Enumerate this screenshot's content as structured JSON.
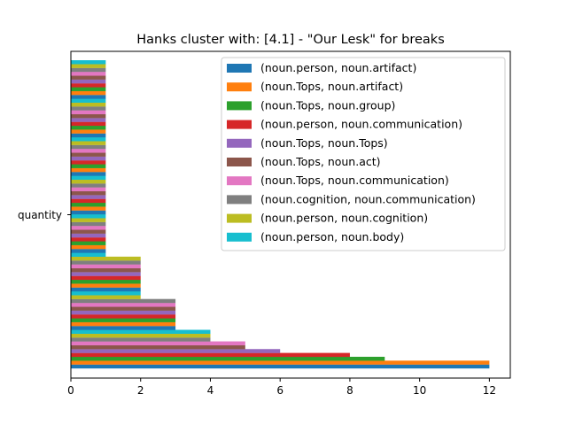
{
  "chart_data": {
    "type": "bar",
    "orientation": "horizontal",
    "title": "Hanks cluster with: [4.1] - \"Our Lesk\" for breaks",
    "xlabel": "",
    "ylabel": "",
    "category_label": "quantity",
    "xlim": [
      0,
      12.6
    ],
    "xticks": [
      "0",
      "2",
      "4",
      "6",
      "8",
      "10",
      "12"
    ],
    "legend_position": "top-right",
    "legend": [
      {
        "name": "(noun.person, noun.artifact)",
        "color": "#1f77b4"
      },
      {
        "name": "(noun.Tops, noun.artifact)",
        "color": "#ff7f0e"
      },
      {
        "name": "(noun.Tops, noun.group)",
        "color": "#2ca02c"
      },
      {
        "name": "(noun.person, noun.communication)",
        "color": "#d62728"
      },
      {
        "name": "(noun.Tops, noun.Tops)",
        "color": "#9467bd"
      },
      {
        "name": "(noun.Tops, noun.act)",
        "color": "#8c564b"
      },
      {
        "name": "(noun.Tops, noun.communication)",
        "color": "#e377c2"
      },
      {
        "name": "(noun.cognition, noun.communication)",
        "color": "#7f7f7f"
      },
      {
        "name": "(noun.person, noun.cognition)",
        "color": "#bcbd22"
      },
      {
        "name": "(noun.person, noun.body)",
        "color": "#17becf"
      }
    ],
    "colors": [
      "#1f77b4",
      "#ff7f0e",
      "#2ca02c",
      "#d62728",
      "#9467bd",
      "#8c564b",
      "#e377c2",
      "#7f7f7f",
      "#bcbd22",
      "#17becf"
    ],
    "values": [
      12,
      12,
      9,
      8,
      6,
      5,
      5,
      4,
      4,
      4,
      3,
      3,
      3,
      3,
      3,
      3,
      3,
      3,
      2,
      2,
      2,
      2,
      2,
      2,
      2,
      2,
      2,
      2,
      2,
      1,
      1,
      1,
      1,
      1,
      1,
      1,
      1,
      1,
      1,
      1,
      1,
      1,
      1,
      1,
      1,
      1,
      1,
      1,
      1,
      1,
      1,
      1,
      1,
      1,
      1,
      1,
      1,
      1,
      1,
      1,
      1,
      1,
      1,
      1,
      1,
      1,
      1,
      1,
      1,
      1,
      1,
      1,
      1,
      1,
      1,
      1,
      1,
      1,
      1,
      1
    ]
  }
}
